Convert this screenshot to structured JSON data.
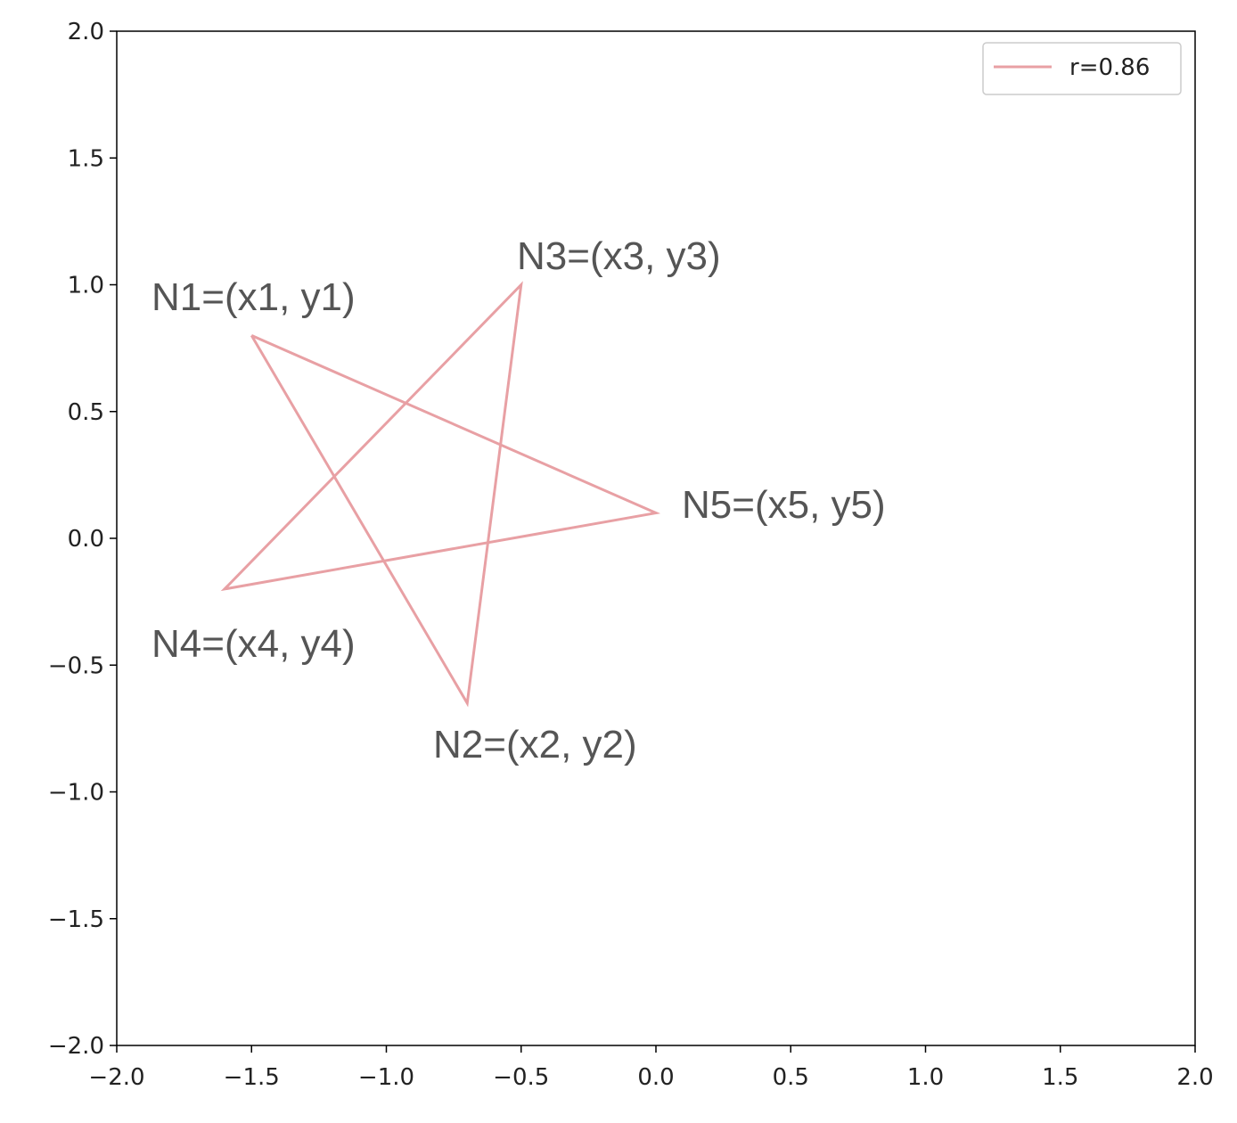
{
  "chart_data": {
    "type": "line",
    "x": [
      -1.5,
      -0.7,
      -0.5,
      -1.6,
      0.0,
      -1.5
    ],
    "series": [
      {
        "name": "r=0.86",
        "color": "#e8a0a4",
        "values": [
          0.8,
          -0.65,
          1.0,
          -0.2,
          0.1,
          0.8
        ]
      }
    ],
    "annotations": [
      "N1=(x1, y1)",
      "N2=(x2, y2)",
      "N3=(x3, y3)",
      "N4=(x4, y4)",
      "N5=(x5, y5)"
    ],
    "xlim": [
      -2,
      2
    ],
    "ylim": [
      -2,
      2
    ],
    "xticks": [
      {
        "value": -2,
        "label": "−2.0"
      },
      {
        "value": -1.5,
        "label": "−1.5"
      },
      {
        "value": -1,
        "label": "−1.0"
      },
      {
        "value": -0.5,
        "label": "−0.5"
      },
      {
        "value": 0,
        "label": "0.0"
      },
      0.5,
      {
        "value": 1,
        "label": "1.0"
      },
      1.5,
      {
        "value": 2,
        "label": "2.0"
      }
    ],
    "yticks": [
      {
        "value": -2,
        "label": "−2.0"
      },
      {
        "value": -1.5,
        "label": "−1.5"
      },
      {
        "value": -1,
        "label": "−1.0"
      },
      {
        "value": -0.5,
        "label": "−0.5"
      },
      {
        "value": 0,
        "label": "0.0"
      },
      0.5,
      {
        "value": 1,
        "label": "1.0"
      },
      1.5,
      {
        "value": 2,
        "label": "2.0"
      }
    ],
    "grid": false,
    "legend": "upper right"
  }
}
